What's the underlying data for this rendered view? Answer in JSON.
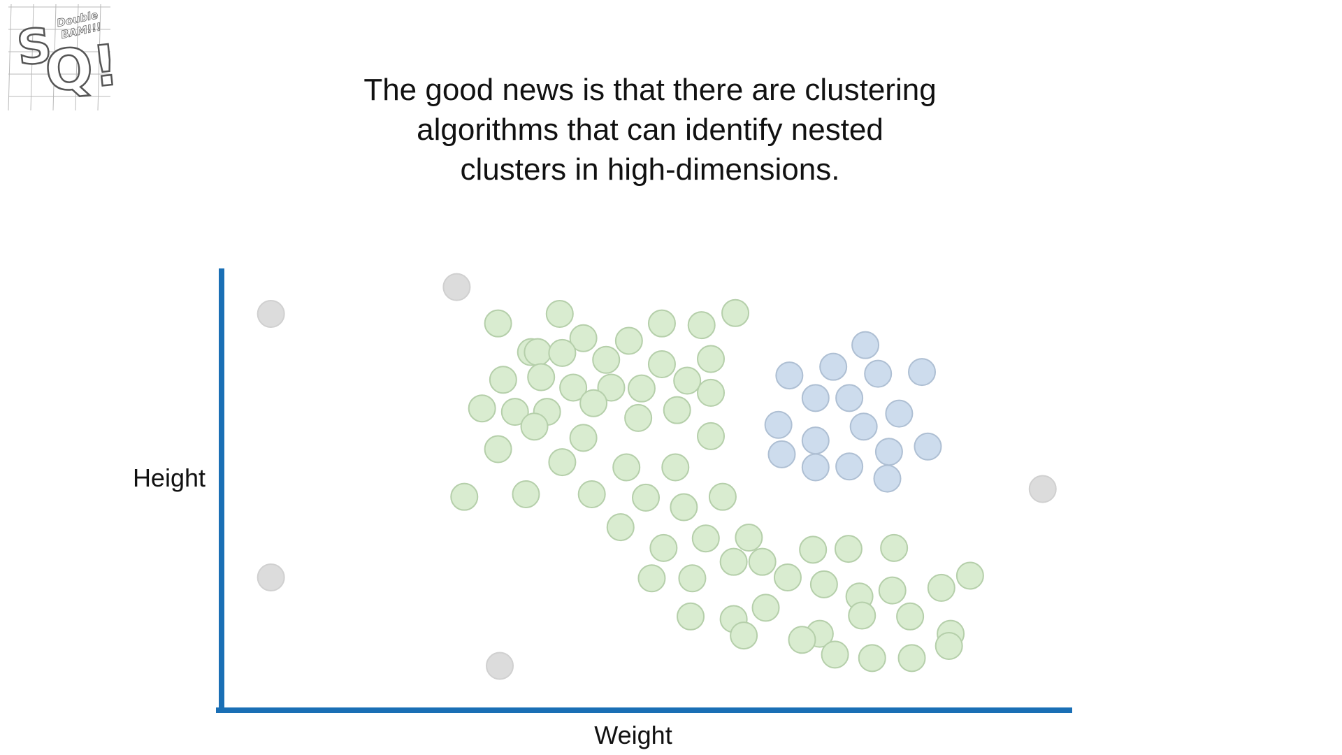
{
  "logo": {
    "icon": "statquest-double-bam-logo",
    "text": "Double BAM!!!"
  },
  "title_lines": [
    "The good news is that there are clustering",
    "algorithms that can identify nested",
    "clusters in high-dimensions."
  ],
  "colors": {
    "axis": "#1a6fb5",
    "green_fill": "#d9ecd0",
    "green_stroke": "#b5cfaa",
    "blue_fill": "#cddced",
    "blue_stroke": "#aebfd3",
    "gray_fill": "#dcdcdc",
    "gray_stroke": "#d0d0d0"
  },
  "chart_data": {
    "type": "scatter",
    "title": "",
    "xlabel": "Weight",
    "ylabel": "Height",
    "xlim": [
      0,
      100
    ],
    "ylim": [
      0,
      100
    ],
    "grid": false,
    "legend": "none",
    "series": [
      {
        "color": "gray",
        "points": [
          [
            5.6,
            90.8
          ],
          [
            27.6,
            97.0
          ],
          [
            5.6,
            30.0
          ],
          [
            32.7,
            9.6
          ],
          [
            97.0,
            50.4
          ]
        ]
      },
      {
        "color": "green",
        "points": [
          [
            32.5,
            88.6
          ],
          [
            39.8,
            90.8
          ],
          [
            51.9,
            88.6
          ],
          [
            56.6,
            88.2
          ],
          [
            60.6,
            91.0
          ],
          [
            42.6,
            85.2
          ],
          [
            48.0,
            84.6
          ],
          [
            36.4,
            82.0
          ],
          [
            37.2,
            82.0
          ],
          [
            40.1,
            81.8
          ],
          [
            45.3,
            80.2
          ],
          [
            51.9,
            79.2
          ],
          [
            57.7,
            80.4
          ],
          [
            33.1,
            75.6
          ],
          [
            37.6,
            76.2
          ],
          [
            41.4,
            73.8
          ],
          [
            45.9,
            73.8
          ],
          [
            49.5,
            73.6
          ],
          [
            54.9,
            75.4
          ],
          [
            57.7,
            72.6
          ],
          [
            30.6,
            69.0
          ],
          [
            34.5,
            68.2
          ],
          [
            38.3,
            68.2
          ],
          [
            43.8,
            70.2
          ],
          [
            49.1,
            66.8
          ],
          [
            53.7,
            68.6
          ],
          [
            36.8,
            64.8
          ],
          [
            42.6,
            62.2
          ],
          [
            57.7,
            62.6
          ],
          [
            32.5,
            59.6
          ],
          [
            40.1,
            56.6
          ],
          [
            47.7,
            55.4
          ],
          [
            53.5,
            55.4
          ],
          [
            28.5,
            48.6
          ],
          [
            35.8,
            49.2
          ],
          [
            43.6,
            49.2
          ],
          [
            50.0,
            48.4
          ],
          [
            54.5,
            46.2
          ],
          [
            59.1,
            48.6
          ],
          [
            47.0,
            41.6
          ],
          [
            52.1,
            36.8
          ],
          [
            57.1,
            39.0
          ],
          [
            62.2,
            39.2
          ],
          [
            50.7,
            29.8
          ],
          [
            55.5,
            29.8
          ],
          [
            60.4,
            33.6
          ],
          [
            63.8,
            33.6
          ],
          [
            66.8,
            30.0
          ],
          [
            69.8,
            36.4
          ],
          [
            74.0,
            36.6
          ],
          [
            79.4,
            36.8
          ],
          [
            71.1,
            28.4
          ],
          [
            75.3,
            25.6
          ],
          [
            79.2,
            27.0
          ],
          [
            85.0,
            27.6
          ],
          [
            88.4,
            30.4
          ],
          [
            60.4,
            20.4
          ],
          [
            64.2,
            23.0
          ],
          [
            70.6,
            17.0
          ],
          [
            75.6,
            21.2
          ],
          [
            81.3,
            21.0
          ],
          [
            86.1,
            17.0
          ],
          [
            55.3,
            21.0
          ],
          [
            61.6,
            16.6
          ],
          [
            68.5,
            15.6
          ],
          [
            72.4,
            12.2
          ],
          [
            76.8,
            11.4
          ],
          [
            81.5,
            11.4
          ],
          [
            85.9,
            14.2
          ]
        ]
      },
      {
        "color": "blue",
        "points": [
          [
            76.0,
            83.6
          ],
          [
            67.0,
            76.6
          ],
          [
            72.2,
            78.6
          ],
          [
            77.5,
            77.0
          ],
          [
            82.7,
            77.4
          ],
          [
            70.1,
            71.4
          ],
          [
            74.1,
            71.4
          ],
          [
            80.0,
            67.8
          ],
          [
            65.7,
            65.2
          ],
          [
            70.1,
            61.6
          ],
          [
            75.8,
            64.8
          ],
          [
            78.8,
            59.0
          ],
          [
            83.4,
            60.2
          ],
          [
            66.1,
            58.4
          ],
          [
            70.1,
            55.4
          ],
          [
            74.1,
            55.6
          ],
          [
            78.6,
            52.8
          ]
        ]
      }
    ]
  }
}
